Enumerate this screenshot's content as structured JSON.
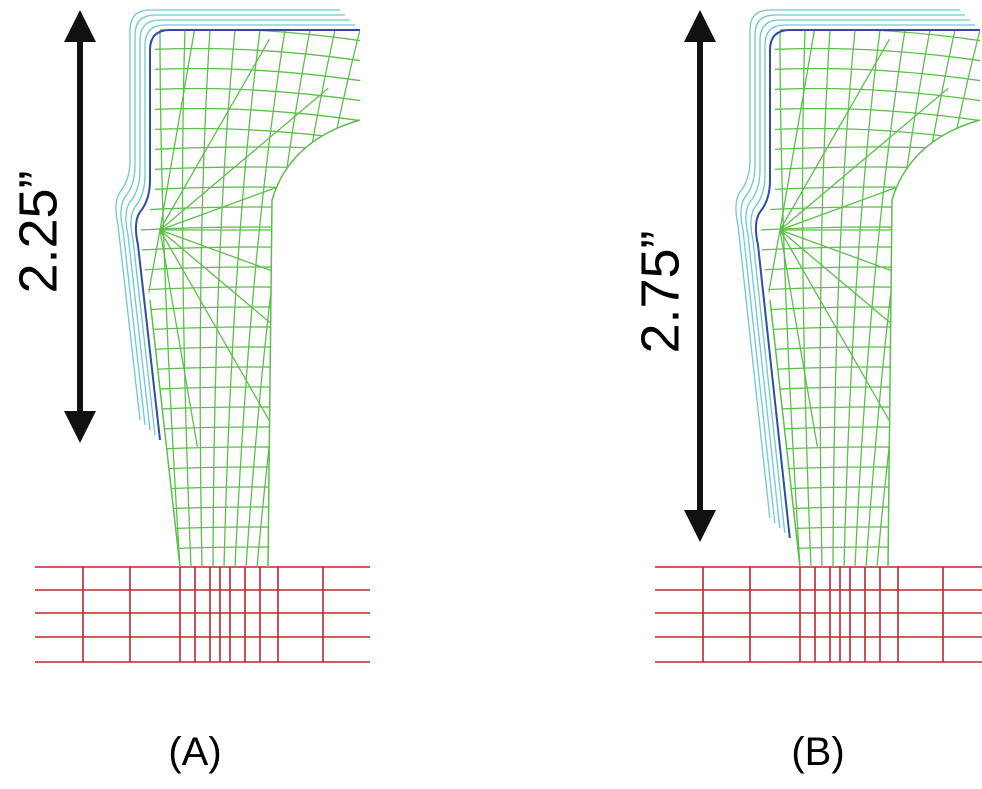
{
  "panels": [
    {
      "dimension": "2.25”",
      "label": "(A)"
    },
    {
      "dimension": "2.75”",
      "label": "(B)"
    }
  ]
}
